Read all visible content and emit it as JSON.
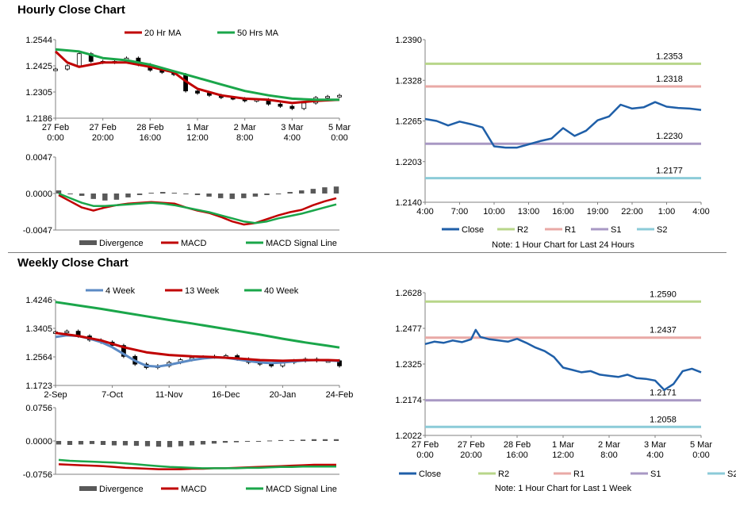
{
  "sections": {
    "hourly_title": "Hourly Close Chart",
    "weekly_title": "Weekly Close Chart"
  },
  "colors": {
    "close": "#1f5fa8",
    "ma20": "#c00000",
    "ma50": "#1aa64a",
    "r2": "#b8d68a",
    "r1": "#e9a9a6",
    "s1": "#a898c4",
    "s2": "#8ccbd8",
    "divergence": "#595959",
    "candle": "#000000",
    "w4": "#5b8ac4",
    "w13": "#c00000",
    "w40": "#1aa64a"
  },
  "chart_data": [
    {
      "id": "hourly_price",
      "type": "line",
      "title": "",
      "legend": [
        "20 Hr MA",
        "50 Hrs MA"
      ],
      "legend_position": "top",
      "x_ticks": [
        "27 Feb\n0:00",
        "27 Feb\n20:00",
        "28 Feb\n16:00",
        "1 Mar\n12:00",
        "2 Mar\n8:00",
        "3 Mar\n4:00",
        "5 Mar\n0:00"
      ],
      "y_ticks": [
        "1.2544",
        "1.2425",
        "1.2305",
        "1.2186"
      ],
      "ylim": [
        1.2186,
        1.2544
      ],
      "grid": false,
      "series": [
        {
          "name": "Close",
          "style": "candles",
          "x": [
            0,
            0.25,
            0.5,
            0.75,
            1,
            1.25,
            1.5,
            1.75,
            2,
            2.25,
            2.5,
            2.75,
            3,
            3.25,
            3.5,
            3.75,
            4,
            4.25,
            4.5,
            4.75,
            5,
            5.25,
            5.5,
            5.75,
            6
          ],
          "values": [
            1.241,
            1.2425,
            1.248,
            1.2445,
            1.244,
            1.2445,
            1.246,
            1.243,
            1.2405,
            1.2395,
            1.2385,
            1.231,
            1.23,
            1.229,
            1.228,
            1.2275,
            1.2265,
            1.227,
            1.225,
            1.224,
            1.223,
            1.2255,
            1.228,
            1.2285,
            1.229
          ]
        },
        {
          "name": "20 Hr MA",
          "x": [
            0,
            0.25,
            0.5,
            0.75,
            1,
            1.5,
            2,
            2.5,
            2.75,
            3,
            3.5,
            4,
            4.5,
            5,
            5.5,
            6
          ],
          "values": [
            1.249,
            1.244,
            1.242,
            1.243,
            1.244,
            1.244,
            1.242,
            1.2395,
            1.2355,
            1.232,
            1.229,
            1.2275,
            1.227,
            1.2255,
            1.2265,
            1.227
          ]
        },
        {
          "name": "50 Hrs MA",
          "x": [
            0,
            0.5,
            1,
            1.5,
            2,
            2.5,
            3,
            3.5,
            4,
            4.5,
            5,
            5.5,
            6
          ],
          "values": [
            1.25,
            1.249,
            1.246,
            1.245,
            1.243,
            1.24,
            1.237,
            1.234,
            1.231,
            1.229,
            1.2275,
            1.227,
            1.227
          ]
        }
      ]
    },
    {
      "id": "hourly_macd",
      "type": "line",
      "legend": [
        "Divergence",
        "MACD",
        "MACD Signal Line"
      ],
      "legend_position": "bottom",
      "y_ticks": [
        "0.0047",
        "0.0000",
        "-0.0047"
      ],
      "ylim": [
        -0.0047,
        0.0047
      ],
      "series": [
        {
          "name": "Divergence",
          "style": "bars",
          "values": [
            0.0004,
            0.0,
            -0.0003,
            -0.0007,
            -0.0009,
            -0.0008,
            -0.0005,
            -0.0002,
            0.0001,
            0.0002,
            0.0001,
            0.0,
            -0.0002,
            -0.0004,
            -0.0006,
            -0.0007,
            -0.0006,
            -0.0004,
            -0.0002,
            0.0,
            0.0002,
            0.0004,
            0.0006,
            0.0008,
            0.0009
          ]
        },
        {
          "name": "MACD",
          "values": [
            -0.0002,
            -0.001,
            -0.0018,
            -0.0022,
            -0.0018,
            -0.0015,
            -0.0013,
            -0.0012,
            -0.0011,
            -0.0012,
            -0.0013,
            -0.0018,
            -0.0022,
            -0.0025,
            -0.003,
            -0.0036,
            -0.004,
            -0.0038,
            -0.0033,
            -0.0028,
            -0.0024,
            -0.0021,
            -0.0015,
            -0.001,
            -0.0006
          ]
        },
        {
          "name": "MACD Signal Line",
          "values": [
            0.0,
            -0.0006,
            -0.0012,
            -0.0016,
            -0.0016,
            -0.0015,
            -0.0014,
            -0.0013,
            -0.0012,
            -0.0013,
            -0.0015,
            -0.0018,
            -0.0021,
            -0.0024,
            -0.0028,
            -0.0032,
            -0.0036,
            -0.0038,
            -0.0036,
            -0.0032,
            -0.0029,
            -0.0026,
            -0.0022,
            -0.0018,
            -0.0014
          ]
        }
      ]
    },
    {
      "id": "hourly_pivots",
      "type": "line",
      "note": "Note: 1 Hour Chart for Last 24 Hours",
      "legend": [
        "Close",
        "R2",
        "R1",
        "S1",
        "S2"
      ],
      "legend_position": "bottom",
      "x_ticks": [
        "4:00",
        "7:00",
        "10:00",
        "13:00",
        "16:00",
        "19:00",
        "22:00",
        "1:00",
        "4:00"
      ],
      "y_ticks": [
        "1.2390",
        "1.2328",
        "1.2265",
        "1.2203",
        "1.2140"
      ],
      "ylim": [
        1.214,
        1.239
      ],
      "levels": [
        {
          "name": "R2",
          "value": 1.2353,
          "label": "1.2353"
        },
        {
          "name": "R1",
          "value": 1.2318,
          "label": "1.2318"
        },
        {
          "name": "S1",
          "value": 1.223,
          "label": "1.2230"
        },
        {
          "name": "S2",
          "value": 1.2177,
          "label": "1.2177"
        }
      ],
      "series": [
        {
          "name": "Close",
          "x": [
            0,
            1,
            2,
            3,
            4,
            5,
            6,
            7,
            8,
            9,
            10,
            11,
            12,
            13,
            14,
            15,
            16,
            17,
            18,
            19,
            20,
            21,
            22,
            23,
            24
          ],
          "values": [
            1.2268,
            1.2265,
            1.2258,
            1.2264,
            1.226,
            1.2255,
            1.2226,
            1.2224,
            1.2224,
            1.2229,
            1.2234,
            1.2238,
            1.2254,
            1.2242,
            1.225,
            1.2266,
            1.2272,
            1.229,
            1.2284,
            1.2286,
            1.2294,
            1.2287,
            1.2285,
            1.2284,
            1.2282
          ]
        }
      ]
    },
    {
      "id": "weekly_price",
      "type": "line",
      "legend": [
        "4 Week",
        "13 Week",
        "40 Week"
      ],
      "legend_position": "top",
      "x_ticks": [
        "2-Sep",
        "7-Oct",
        "11-Nov",
        "16-Dec",
        "20-Jan",
        "24-Feb"
      ],
      "y_ticks": [
        "1.4246",
        "1.3405",
        "1.2564",
        "1.1723"
      ],
      "ylim": [
        1.1723,
        1.4246
      ],
      "series": [
        {
          "name": "Close",
          "style": "candles",
          "x": [
            0,
            1,
            2,
            3,
            4,
            5,
            6,
            7,
            8,
            9,
            10,
            11,
            12,
            13,
            14,
            15,
            16,
            17,
            18,
            19,
            20,
            21,
            22,
            23,
            24,
            25
          ],
          "values": [
            1.33,
            1.332,
            1.318,
            1.306,
            1.3,
            1.29,
            1.258,
            1.235,
            1.225,
            1.23,
            1.24,
            1.248,
            1.254,
            1.256,
            1.258,
            1.26,
            1.25,
            1.24,
            1.235,
            1.23,
            1.24,
            1.245,
            1.25,
            1.245,
            1.245,
            1.23
          ]
        },
        {
          "name": "4 Week",
          "x": [
            0,
            1,
            2,
            3,
            4,
            5,
            6,
            7,
            8,
            9,
            10,
            11,
            12,
            13,
            14,
            15,
            16,
            17,
            18,
            19,
            20,
            21,
            22,
            23,
            24,
            25
          ],
          "values": [
            1.315,
            1.32,
            1.318,
            1.31,
            1.3,
            1.285,
            1.265,
            1.245,
            1.23,
            1.228,
            1.233,
            1.24,
            1.247,
            1.252,
            1.255,
            1.254,
            1.249,
            1.244,
            1.24,
            1.238,
            1.24,
            1.243,
            1.246,
            1.247,
            1.246,
            1.244
          ]
        },
        {
          "name": "13 Week",
          "x": [
            0,
            2,
            4,
            6,
            8,
            10,
            12,
            14,
            16,
            18,
            20,
            22,
            24,
            25
          ],
          "values": [
            1.327,
            1.318,
            1.305,
            1.285,
            1.27,
            1.262,
            1.258,
            1.256,
            1.252,
            1.247,
            1.245,
            1.247,
            1.247,
            1.246
          ]
        },
        {
          "name": "40 Week",
          "x": [
            0,
            2,
            4,
            6,
            8,
            10,
            12,
            14,
            16,
            18,
            20,
            22,
            24,
            25
          ],
          "values": [
            1.418,
            1.408,
            1.398,
            1.387,
            1.376,
            1.365,
            1.355,
            1.344,
            1.333,
            1.322,
            1.31,
            1.299,
            1.289,
            1.284
          ]
        }
      ]
    },
    {
      "id": "weekly_macd",
      "type": "line",
      "legend": [
        "Divergence",
        "MACD",
        "MACD Signal Line"
      ],
      "legend_position": "bottom",
      "y_ticks": [
        "0.0756",
        "0.0000",
        "-0.0756"
      ],
      "ylim": [
        -0.0756,
        0.0756
      ],
      "series": [
        {
          "name": "Divergence",
          "style": "bars",
          "values": [
            -0.008,
            -0.009,
            -0.008,
            -0.007,
            -0.009,
            -0.01,
            -0.01,
            -0.011,
            -0.012,
            -0.013,
            -0.014,
            -0.012,
            -0.01,
            -0.008,
            -0.006,
            -0.004,
            -0.003,
            -0.001,
            0.0,
            0.001,
            0.002,
            0.002,
            0.003,
            0.004,
            0.004,
            0.004
          ]
        },
        {
          "name": "MACD",
          "values": [
            -0.053,
            -0.054,
            -0.055,
            -0.056,
            -0.057,
            -0.059,
            -0.061,
            -0.062,
            -0.063,
            -0.064,
            -0.064,
            -0.064,
            -0.063,
            -0.063,
            -0.062,
            -0.062,
            -0.061,
            -0.06,
            -0.059,
            -0.058,
            -0.057,
            -0.056,
            -0.055,
            -0.054,
            -0.054,
            -0.054
          ]
        },
        {
          "name": "MACD Signal Line",
          "values": [
            -0.043,
            -0.045,
            -0.046,
            -0.047,
            -0.048,
            -0.049,
            -0.051,
            -0.053,
            -0.055,
            -0.057,
            -0.059,
            -0.06,
            -0.061,
            -0.062,
            -0.062,
            -0.062,
            -0.062,
            -0.061,
            -0.061,
            -0.06,
            -0.059,
            -0.059,
            -0.058,
            -0.058,
            -0.058,
            -0.058
          ]
        }
      ]
    },
    {
      "id": "weekly_pivots",
      "type": "line",
      "note": "Note: 1 Hour Chart for Last 1 Week",
      "legend": [
        "Close",
        "R2",
        "R1",
        "S1",
        "S2"
      ],
      "legend_position": "bottom",
      "x_ticks": [
        "27 Feb\n0:00",
        "27 Feb\n20:00",
        "28 Feb\n16:00",
        "1 Mar\n12:00",
        "2 Mar\n8:00",
        "3 Mar\n4:00",
        "5 Mar\n0:00"
      ],
      "y_ticks": [
        "1.2628",
        "1.2477",
        "1.2325",
        "1.2174",
        "1.2022"
      ],
      "ylim": [
        1.2022,
        1.2628
      ],
      "levels": [
        {
          "name": "R2",
          "value": 1.259,
          "label": "1.2590"
        },
        {
          "name": "R1",
          "value": 1.2437,
          "label": "1.2437"
        },
        {
          "name": "S1",
          "value": 1.2171,
          "label": "1.2171"
        },
        {
          "name": "S2",
          "value": 1.2058,
          "label": "1.2058"
        }
      ],
      "series": [
        {
          "name": "Close",
          "x": [
            0,
            0.2,
            0.4,
            0.6,
            0.8,
            1,
            1.1,
            1.2,
            1.4,
            1.6,
            1.8,
            2,
            2.2,
            2.4,
            2.6,
            2.8,
            3,
            3.2,
            3.4,
            3.6,
            3.8,
            4,
            4.2,
            4.4,
            4.6,
            4.8,
            5,
            5.2,
            5.4,
            5.6,
            5.8,
            6
          ],
          "values": [
            1.241,
            1.242,
            1.2415,
            1.2425,
            1.2418,
            1.243,
            1.247,
            1.244,
            1.243,
            1.2425,
            1.242,
            1.2432,
            1.2415,
            1.2395,
            1.238,
            1.2355,
            1.231,
            1.23,
            1.229,
            1.2295,
            1.228,
            1.2275,
            1.227,
            1.228,
            1.2265,
            1.2262,
            1.2255,
            1.2215,
            1.224,
            1.2295,
            1.2305,
            1.229
          ]
        }
      ]
    }
  ]
}
